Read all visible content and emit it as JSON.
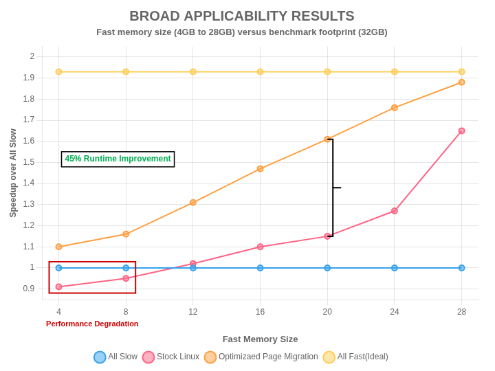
{
  "chart_data": {
    "type": "line",
    "title": "BROAD APPLICABILITY RESULTS",
    "subtitle": "Fast memory size (4GB to 28GB) versus benchmark footprint (32GB)",
    "xlabel": "Fast Memory Size",
    "ylabel": "Speedup over All Slow",
    "x": [
      4,
      8,
      12,
      16,
      20,
      24,
      28
    ],
    "series": [
      {
        "name": "All Slow",
        "values": [
          1.0,
          1.0,
          1.0,
          1.0,
          1.0,
          1.0,
          1.0
        ]
      },
      {
        "name": "Stock Linux",
        "values": [
          0.91,
          0.95,
          1.02,
          1.1,
          1.15,
          1.27,
          1.65
        ]
      },
      {
        "name": "Optimizaed Page Migration",
        "values": [
          1.1,
          1.16,
          1.31,
          1.47,
          1.61,
          1.76,
          1.88
        ]
      },
      {
        "name": "All Fast(Ideal)",
        "values": [
          1.93,
          1.93,
          1.93,
          1.93,
          1.93,
          1.93,
          1.93
        ]
      }
    ],
    "xlim": [
      3,
      29
    ],
    "xticks": [
      4,
      8,
      12,
      16,
      20,
      24,
      28
    ],
    "ylim": [
      0.85,
      2.05
    ],
    "yticks": [
      0.9,
      1.0,
      1.1,
      1.2,
      1.3,
      1.4,
      1.5,
      1.6,
      1.7,
      1.8,
      1.9,
      2
    ],
    "grid": true,
    "legend": "bottom",
    "marker": "circle",
    "annotations": [
      {
        "text": "Performance Degradation",
        "color": "#cc0000"
      },
      {
        "text": "45% Runtime Improvement",
        "color": "#00b050"
      }
    ]
  }
}
